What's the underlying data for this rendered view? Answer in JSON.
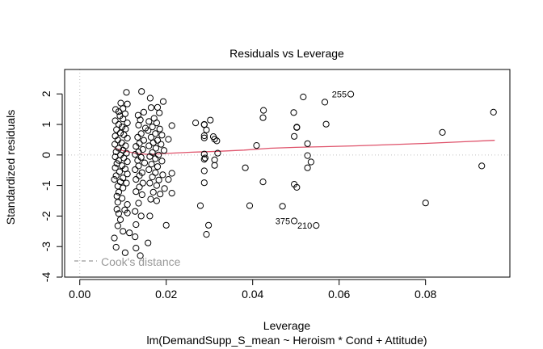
{
  "chart_data": {
    "type": "scatter",
    "title": "Residuals vs Leverage",
    "xlabel": "Leverage",
    "subtitle": "lm(DemandSupp_S_mean ~ Heroism * Cond + Attitude)",
    "ylabel": "Standardized residuals",
    "xlim": [
      -0.0035,
      0.0995
    ],
    "ylim": [
      -4.0,
      2.8
    ],
    "xticks": [
      0.0,
      0.02,
      0.04,
      0.06,
      0.08
    ],
    "xtick_labels": [
      "0.00",
      "0.02",
      "0.04",
      "0.06",
      "0.08"
    ],
    "yticks": [
      -4,
      -3,
      -2,
      -1,
      0,
      1,
      2
    ],
    "ytick_labels": [
      "-4",
      "-3",
      "-2",
      "-1",
      "0",
      "1",
      "2"
    ],
    "reference_lines": {
      "h": 0,
      "v": 0,
      "style": "dotted",
      "color": "#c0c0c0"
    },
    "legend": {
      "entries": [
        {
          "label": "Cook's distance",
          "style": "dashed",
          "color": "#999999"
        }
      ],
      "position": "bottom-left"
    },
    "smoother": {
      "color": "#df536b",
      "x": [
        0.008,
        0.01,
        0.013,
        0.016,
        0.02,
        0.026,
        0.032,
        0.038,
        0.044,
        0.05,
        0.056,
        0.064,
        0.072,
        0.08,
        0.088,
        0.096
      ],
      "y": [
        0.22,
        0.14,
        0.05,
        0.02,
        0.05,
        0.09,
        0.12,
        0.16,
        0.22,
        0.25,
        0.27,
        0.3,
        0.34,
        0.38,
        0.43,
        0.48
      ]
    },
    "labeled_points": [
      {
        "label": "255",
        "x": 0.0627,
        "y": 1.99
      },
      {
        "label": "375",
        "x": 0.0496,
        "y": -2.16
      },
      {
        "label": "210",
        "x": 0.0547,
        "y": -2.31
      }
    ],
    "points": [
      {
        "x": 0.0627,
        "y": 1.99
      },
      {
        "x": 0.0496,
        "y": -2.16
      },
      {
        "x": 0.0547,
        "y": -2.31
      },
      {
        "x": 0.0957,
        "y": 1.4
      },
      {
        "x": 0.0839,
        "y": 0.74
      },
      {
        "x": 0.093,
        "y": -0.36
      },
      {
        "x": 0.08,
        "y": -1.57
      },
      {
        "x": 0.0517,
        "y": 1.9
      },
      {
        "x": 0.0567,
        "y": 1.73
      },
      {
        "x": 0.0495,
        "y": 1.39
      },
      {
        "x": 0.057,
        "y": 1.01
      },
      {
        "x": 0.0502,
        "y": 0.91
      },
      {
        "x": 0.0502,
        "y": 0.9
      },
      {
        "x": 0.0496,
        "y": 0.61
      },
      {
        "x": 0.0527,
        "y": 0.37
      },
      {
        "x": 0.0527,
        "y": -0.02
      },
      {
        "x": 0.0535,
        "y": -0.23
      },
      {
        "x": 0.0527,
        "y": -0.42
      },
      {
        "x": 0.0496,
        "y": -0.96
      },
      {
        "x": 0.0502,
        "y": -1.06
      },
      {
        "x": 0.0469,
        "y": -1.68
      },
      {
        "x": 0.0425,
        "y": 1.46
      },
      {
        "x": 0.0424,
        "y": 1.22
      },
      {
        "x": 0.0409,
        "y": 0.31
      },
      {
        "x": 0.0424,
        "y": -0.88
      },
      {
        "x": 0.0383,
        "y": -0.42
      },
      {
        "x": 0.0393,
        "y": -1.66
      },
      {
        "x": 0.0302,
        "y": 1.14
      },
      {
        "x": 0.0268,
        "y": 1.05
      },
      {
        "x": 0.0288,
        "y": 1.0
      },
      {
        "x": 0.0288,
        "y": 0.99
      },
      {
        "x": 0.0293,
        "y": 0.82
      },
      {
        "x": 0.0288,
        "y": 0.63
      },
      {
        "x": 0.0288,
        "y": 0.56
      },
      {
        "x": 0.0309,
        "y": 0.6
      },
      {
        "x": 0.0312,
        "y": 0.52
      },
      {
        "x": 0.0317,
        "y": 0.46
      },
      {
        "x": 0.0319,
        "y": 0.06
      },
      {
        "x": 0.0288,
        "y": 0.03
      },
      {
        "x": 0.029,
        "y": -0.1
      },
      {
        "x": 0.0288,
        "y": -0.14
      },
      {
        "x": 0.0312,
        "y": -0.16
      },
      {
        "x": 0.0312,
        "y": -0.34
      },
      {
        "x": 0.0288,
        "y": -0.52
      },
      {
        "x": 0.0288,
        "y": -0.91
      },
      {
        "x": 0.0279,
        "y": -1.66
      },
      {
        "x": 0.0298,
        "y": -2.3
      },
      {
        "x": 0.0293,
        "y": -2.6
      },
      {
        "x": 0.0213,
        "y": 0.96
      },
      {
        "x": 0.0213,
        "y": -0.6
      },
      {
        "x": 0.0213,
        "y": -1.25
      },
      {
        "x": 0.02,
        "y": -2.3
      },
      {
        "x": 0.0205,
        "y": 0.51
      },
      {
        "x": 0.0108,
        "y": 2.05
      },
      {
        "x": 0.0143,
        "y": 2.08
      },
      {
        "x": 0.0163,
        "y": 1.86
      },
      {
        "x": 0.0193,
        "y": 1.75
      },
      {
        "x": 0.018,
        "y": 1.56
      },
      {
        "x": 0.0184,
        "y": 1.38
      },
      {
        "x": 0.0095,
        "y": 1.7
      },
      {
        "x": 0.011,
        "y": 1.67
      },
      {
        "x": 0.0083,
        "y": 1.49
      },
      {
        "x": 0.01,
        "y": 1.52
      },
      {
        "x": 0.009,
        "y": 1.42
      },
      {
        "x": 0.0105,
        "y": 1.35
      },
      {
        "x": 0.0093,
        "y": 1.28
      },
      {
        "x": 0.0082,
        "y": 1.12
      },
      {
        "x": 0.01,
        "y": 1.18
      },
      {
        "x": 0.011,
        "y": 1.05
      },
      {
        "x": 0.009,
        "y": 1.0
      },
      {
        "x": 0.0098,
        "y": 0.92
      },
      {
        "x": 0.0085,
        "y": 0.83
      },
      {
        "x": 0.0106,
        "y": 0.85
      },
      {
        "x": 0.0094,
        "y": 0.72
      },
      {
        "x": 0.0082,
        "y": 0.62
      },
      {
        "x": 0.0102,
        "y": 0.66
      },
      {
        "x": 0.011,
        "y": 0.55
      },
      {
        "x": 0.0088,
        "y": 0.49
      },
      {
        "x": 0.0097,
        "y": 0.4
      },
      {
        "x": 0.0081,
        "y": 0.35
      },
      {
        "x": 0.0106,
        "y": 0.3
      },
      {
        "x": 0.009,
        "y": 0.22
      },
      {
        "x": 0.01,
        "y": 0.16
      },
      {
        "x": 0.0084,
        "y": 0.1
      },
      {
        "x": 0.0108,
        "y": 0.06
      },
      {
        "x": 0.0094,
        "y": 0.0
      },
      {
        "x": 0.0082,
        "y": -0.06
      },
      {
        "x": 0.0102,
        "y": -0.1
      },
      {
        "x": 0.009,
        "y": -0.18
      },
      {
        "x": 0.011,
        "y": -0.22
      },
      {
        "x": 0.0086,
        "y": -0.28
      },
      {
        "x": 0.0098,
        "y": -0.35
      },
      {
        "x": 0.0082,
        "y": -0.42
      },
      {
        "x": 0.0105,
        "y": -0.46
      },
      {
        "x": 0.0092,
        "y": -0.55
      },
      {
        "x": 0.011,
        "y": -0.62
      },
      {
        "x": 0.0084,
        "y": -0.68
      },
      {
        "x": 0.01,
        "y": -0.75
      },
      {
        "x": 0.008,
        "y": -0.8
      },
      {
        "x": 0.0094,
        "y": -0.88
      },
      {
        "x": 0.0108,
        "y": -0.92
      },
      {
        "x": 0.0088,
        "y": -1.02
      },
      {
        "x": 0.01,
        "y": -1.08
      },
      {
        "x": 0.009,
        "y": -1.22
      },
      {
        "x": 0.0086,
        "y": -1.35
      },
      {
        "x": 0.0098,
        "y": -1.42
      },
      {
        "x": 0.0088,
        "y": -1.55
      },
      {
        "x": 0.011,
        "y": -1.62
      },
      {
        "x": 0.0086,
        "y": -1.78
      },
      {
        "x": 0.0104,
        "y": -1.8
      },
      {
        "x": 0.011,
        "y": -1.9
      },
      {
        "x": 0.009,
        "y": -1.92
      },
      {
        "x": 0.0094,
        "y": -2.12
      },
      {
        "x": 0.0088,
        "y": -2.32
      },
      {
        "x": 0.01,
        "y": -2.5
      },
      {
        "x": 0.008,
        "y": -2.72
      },
      {
        "x": 0.0084,
        "y": -3.02
      },
      {
        "x": 0.0105,
        "y": -3.2
      },
      {
        "x": 0.0115,
        "y": -2.55
      },
      {
        "x": 0.0135,
        "y": 1.3
      },
      {
        "x": 0.014,
        "y": 1.15
      },
      {
        "x": 0.0148,
        "y": 1.4
      },
      {
        "x": 0.0136,
        "y": 0.98
      },
      {
        "x": 0.0152,
        "y": 0.88
      },
      {
        "x": 0.0142,
        "y": 0.7
      },
      {
        "x": 0.0134,
        "y": 0.58
      },
      {
        "x": 0.0148,
        "y": 0.48
      },
      {
        "x": 0.0138,
        "y": 0.38
      },
      {
        "x": 0.013,
        "y": 0.28
      },
      {
        "x": 0.0146,
        "y": 0.18
      },
      {
        "x": 0.0136,
        "y": 0.1
      },
      {
        "x": 0.0128,
        "y": 0.02
      },
      {
        "x": 0.0142,
        "y": -0.08
      },
      {
        "x": 0.0134,
        "y": -0.18
      },
      {
        "x": 0.015,
        "y": -0.26
      },
      {
        "x": 0.0136,
        "y": -0.36
      },
      {
        "x": 0.0128,
        "y": -0.48
      },
      {
        "x": 0.0144,
        "y": -0.58
      },
      {
        "x": 0.0138,
        "y": -0.68
      },
      {
        "x": 0.013,
        "y": -0.8
      },
      {
        "x": 0.0146,
        "y": -0.92
      },
      {
        "x": 0.0138,
        "y": -1.05
      },
      {
        "x": 0.013,
        "y": -1.2
      },
      {
        "x": 0.0144,
        "y": -1.3
      },
      {
        "x": 0.0136,
        "y": -1.58
      },
      {
        "x": 0.0128,
        "y": -1.85
      },
      {
        "x": 0.0142,
        "y": -2.0
      },
      {
        "x": 0.013,
        "y": -2.28
      },
      {
        "x": 0.0128,
        "y": -2.68
      },
      {
        "x": 0.013,
        "y": -3.05
      },
      {
        "x": 0.0158,
        "y": -2.88
      },
      {
        "x": 0.014,
        "y": -3.3
      },
      {
        "x": 0.0162,
        "y": -2.0
      },
      {
        "x": 0.0165,
        "y": 1.55
      },
      {
        "x": 0.0172,
        "y": 1.2
      },
      {
        "x": 0.016,
        "y": 1.1
      },
      {
        "x": 0.0178,
        "y": 1.05
      },
      {
        "x": 0.0168,
        "y": 0.92
      },
      {
        "x": 0.0185,
        "y": 0.85
      },
      {
        "x": 0.0158,
        "y": 0.8
      },
      {
        "x": 0.0175,
        "y": 0.7
      },
      {
        "x": 0.019,
        "y": 0.65
      },
      {
        "x": 0.0165,
        "y": 0.58
      },
      {
        "x": 0.018,
        "y": 0.48
      },
      {
        "x": 0.017,
        "y": 0.4
      },
      {
        "x": 0.0188,
        "y": 0.35
      },
      {
        "x": 0.016,
        "y": 0.3
      },
      {
        "x": 0.0176,
        "y": 0.22
      },
      {
        "x": 0.0195,
        "y": 0.15
      },
      {
        "x": 0.0168,
        "y": 0.08
      },
      {
        "x": 0.0182,
        "y": 0.0
      },
      {
        "x": 0.0162,
        "y": -0.05
      },
      {
        "x": 0.0175,
        "y": -0.12
      },
      {
        "x": 0.019,
        "y": -0.2
      },
      {
        "x": 0.0166,
        "y": -0.3
      },
      {
        "x": 0.018,
        "y": -0.38
      },
      {
        "x": 0.016,
        "y": -0.48
      },
      {
        "x": 0.0175,
        "y": -0.58
      },
      {
        "x": 0.0192,
        "y": -0.65
      },
      {
        "x": 0.0168,
        "y": -0.72
      },
      {
        "x": 0.0183,
        "y": -0.82
      },
      {
        "x": 0.0162,
        "y": -0.92
      },
      {
        "x": 0.0178,
        "y": -1.0
      },
      {
        "x": 0.0196,
        "y": -1.1
      },
      {
        "x": 0.017,
        "y": -1.22
      },
      {
        "x": 0.0186,
        "y": -1.28
      },
      {
        "x": 0.0164,
        "y": -1.45
      },
      {
        "x": 0.0178,
        "y": -1.5
      },
      {
        "x": 0.0205,
        "y": -0.8
      }
    ]
  }
}
